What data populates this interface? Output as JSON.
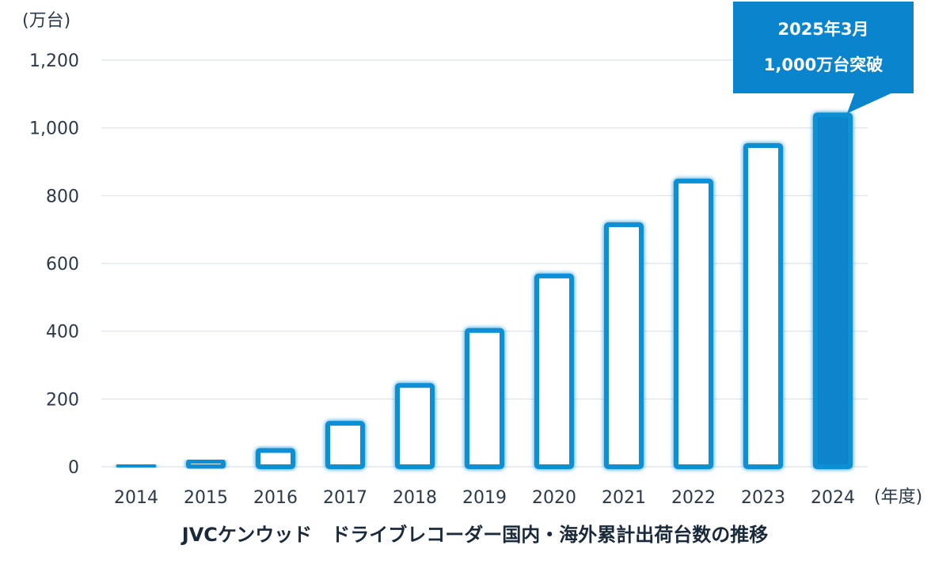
{
  "chart_data": {
    "type": "bar",
    "title": "JVCケンウッド　ドライブレコーダー国内・海外累計出荷台数の推移",
    "ylabel": "(万台)",
    "xlabel": "(年度)",
    "ylim": [
      0,
      1200
    ],
    "yticks": [
      "0",
      "200",
      "400",
      "600",
      "800",
      "1,000",
      "1,200"
    ],
    "categories": [
      "2014",
      "2015",
      "2016",
      "2017",
      "2018",
      "2019",
      "2020",
      "2021",
      "2022",
      "2023",
      "2024"
    ],
    "values": [
      3,
      16,
      48,
      128,
      240,
      402,
      563,
      714,
      843,
      948,
      1038
    ],
    "highlight_index": 10,
    "grid": true,
    "colors": {
      "bar_outline": "#0a8fd6",
      "bar_fill_highlight": "#0a84cc",
      "callout_bg": "#0a84cc"
    },
    "annotation": {
      "line1": "2025年3月",
      "line2": "1,000万台突破"
    }
  }
}
